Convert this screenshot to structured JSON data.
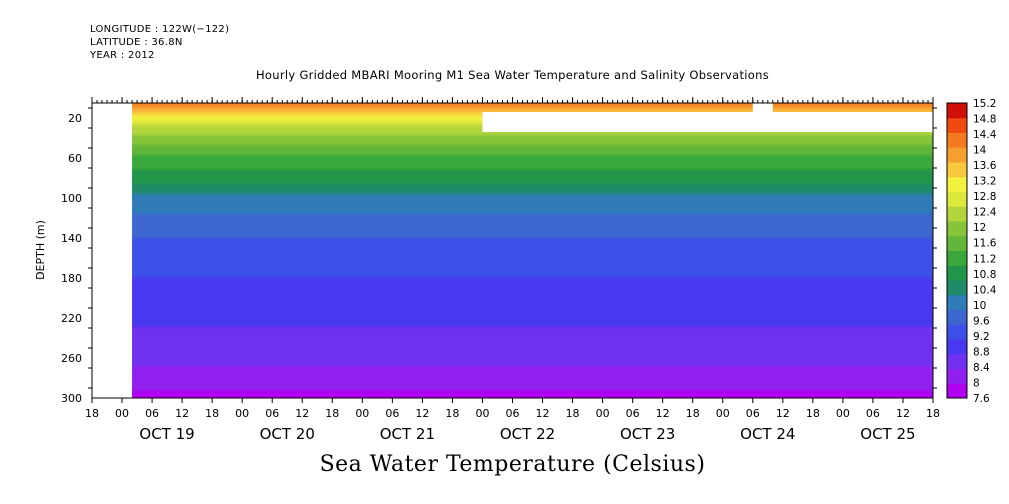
{
  "header": {
    "longitude": "LONGITUDE : 122W(−122)",
    "latitude": "LATITUDE : 36.8N",
    "year": "YEAR : 2012"
  },
  "chart_data": {
    "type": "heatmap",
    "title": "Hourly Gridded MBARI Mooring M1 Sea Water Temperature and Salinity Observations",
    "xlabel": "Sea Water Temperature (Celsius)",
    "ylabel": "DEPTH (m)",
    "y_ticks": [
      20,
      60,
      100,
      140,
      180,
      220,
      260,
      300
    ],
    "y_range": [
      5,
      300
    ],
    "x_range_hours": [
      0,
      168
    ],
    "x_hour_labels": [
      "00",
      "06",
      "12",
      "18"
    ],
    "x_day_labels": [
      "OCT 19",
      "OCT 20",
      "OCT 21",
      "OCT 22",
      "OCT 23",
      "OCT 24",
      "OCT 25"
    ],
    "x_start": "OCT 18 18:00",
    "colorbar": {
      "levels": [
        7.6,
        8,
        8.4,
        8.8,
        9.2,
        9.6,
        10,
        10.4,
        10.8,
        11.2,
        11.6,
        12,
        12.4,
        12.8,
        13.2,
        13.6,
        14,
        14.4,
        14.8,
        15.2
      ],
      "colors": [
        "#b000f0",
        "#9020f0",
        "#7030f0",
        "#4838f0",
        "#3d50e8",
        "#3d66d0",
        "#2e7bb8",
        "#1e8a6a",
        "#21964a",
        "#3aa83a",
        "#62b63a",
        "#86c43a",
        "#b4d43c",
        "#dce83c",
        "#f2f23e",
        "#f8c83c",
        "#f4a030",
        "#f47a20",
        "#f04a10",
        "#d01008"
      ]
    },
    "profile": [
      {
        "depth": 5,
        "temp": 14.4
      },
      {
        "depth": 15,
        "temp": 13.8
      },
      {
        "depth": 25,
        "temp": 12.9
      },
      {
        "depth": 40,
        "temp": 12.3
      },
      {
        "depth": 60,
        "temp": 11.5
      },
      {
        "depth": 80,
        "temp": 11.0
      },
      {
        "depth": 100,
        "temp": 10.3
      },
      {
        "depth": 120,
        "temp": 9.9
      },
      {
        "depth": 140,
        "temp": 9.6
      },
      {
        "depth": 170,
        "temp": 9.3
      },
      {
        "depth": 200,
        "temp": 9.0
      },
      {
        "depth": 240,
        "temp": 8.7
      },
      {
        "depth": 270,
        "temp": 8.35
      },
      {
        "depth": 300,
        "temp": 7.9
      }
    ],
    "missing_data": [
      {
        "hour_start": 0,
        "hour_end": 8,
        "depth_top": 5,
        "depth_bottom": 300
      },
      {
        "hour_start": 78,
        "hour_end": 168,
        "depth_top": 14,
        "depth_bottom": 34
      },
      {
        "hour_start": 132,
        "hour_end": 136,
        "depth_top": 5,
        "depth_bottom": 14
      }
    ]
  }
}
